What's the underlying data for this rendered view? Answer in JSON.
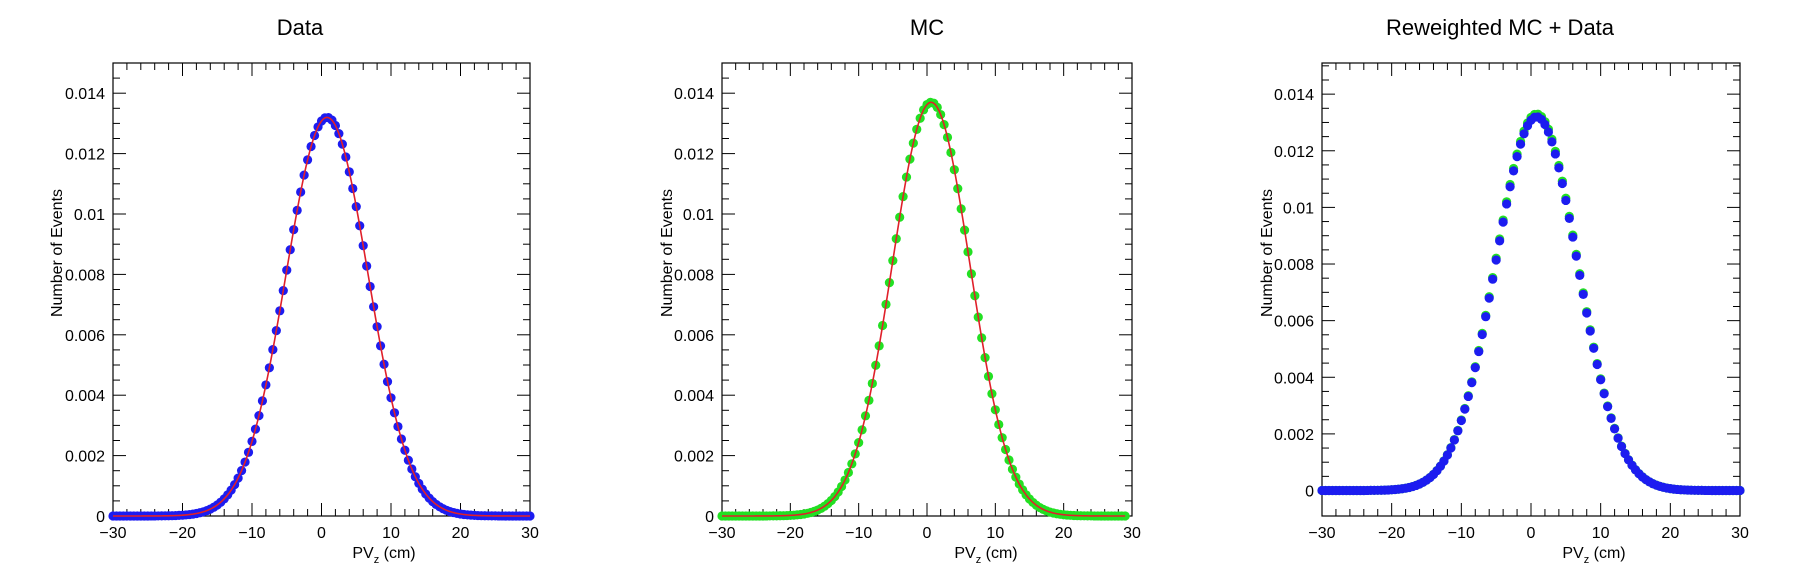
{
  "chart_data": [
    {
      "type": "scatter",
      "title": "Data",
      "xlabel": "PV",
      "xlabel_sub": "z",
      "xlabel_unit": " (cm)",
      "ylabel": "Number of Events",
      "xlim": [
        -30,
        30
      ],
      "ylim": [
        0,
        0.015
      ],
      "xticks": [
        -30,
        -20,
        -10,
        0,
        10,
        20,
        30
      ],
      "yticks": [
        0,
        0.002,
        0.004,
        0.006,
        0.008,
        0.01,
        0.012,
        0.014
      ],
      "ytick_labels": [
        "0",
        "0.002",
        "0.004",
        "0.006",
        "0.008",
        "0.01",
        "0.012",
        "0.014"
      ],
      "grid": false,
      "series": [
        {
          "kind": "markers",
          "color": "#1c1cf0",
          "gauss": {
            "amplitude": 0.0132,
            "mean": 0.8,
            "sigma": 5.9
          },
          "x_range": [
            -30,
            30
          ],
          "n_points": 121
        },
        {
          "kind": "fit-line",
          "color": "#e0202a",
          "gauss": {
            "amplitude": 0.0132,
            "mean": 0.8,
            "sigma": 5.9
          },
          "x_range": [
            -30,
            30
          ]
        }
      ]
    },
    {
      "type": "scatter",
      "title": "MC",
      "xlabel": "PV",
      "xlabel_sub": "z",
      "xlabel_unit": " (cm)",
      "ylabel": "Number of Events",
      "xlim": [
        -30,
        30
      ],
      "ylim": [
        0,
        0.015
      ],
      "xticks": [
        -30,
        -20,
        -10,
        0,
        10,
        20,
        30
      ],
      "yticks": [
        0,
        0.002,
        0.004,
        0.006,
        0.008,
        0.01,
        0.012,
        0.014
      ],
      "ytick_labels": [
        "0",
        "0.002",
        "0.004",
        "0.006",
        "0.008",
        "0.01",
        "0.012",
        "0.014"
      ],
      "grid": false,
      "series": [
        {
          "kind": "markers",
          "color": "#22e022",
          "gauss": {
            "amplitude": 0.0137,
            "mean": 0.6,
            "sigma": 5.7
          },
          "x_range": [
            -30,
            29
          ],
          "n_points": 119
        },
        {
          "kind": "fit-line",
          "color": "#e0202a",
          "gauss": {
            "amplitude": 0.0137,
            "mean": 0.6,
            "sigma": 5.7
          },
          "x_range": [
            -30,
            29
          ]
        }
      ]
    },
    {
      "type": "scatter",
      "title": "Reweighted MC + Data",
      "xlabel": "PV",
      "xlabel_sub": "z",
      "xlabel_unit": " (cm)",
      "ylabel": "Number of Events",
      "xlim": [
        -30,
        30
      ],
      "ylim": [
        -0.0009,
        0.0151
      ],
      "xticks": [
        -30,
        -20,
        -10,
        0,
        10,
        20,
        30
      ],
      "yticks": [
        0,
        0.002,
        0.004,
        0.006,
        0.008,
        0.01,
        0.012,
        0.014
      ],
      "ytick_labels": [
        "0",
        "0.002",
        "0.004",
        "0.006",
        "0.008",
        "0.01",
        "0.012",
        "0.014"
      ],
      "grid": false,
      "series": [
        {
          "kind": "markers",
          "color": "#22e022",
          "gauss": {
            "amplitude": 0.0133,
            "mean": 0.8,
            "sigma": 5.9
          },
          "x_range": [
            -30,
            30
          ],
          "n_points": 121
        },
        {
          "kind": "markers",
          "color": "#1c1cf0",
          "gauss": {
            "amplitude": 0.0132,
            "mean": 0.8,
            "sigma": 5.9
          },
          "x_range": [
            -30,
            30
          ],
          "n_points": 121
        }
      ]
    }
  ]
}
